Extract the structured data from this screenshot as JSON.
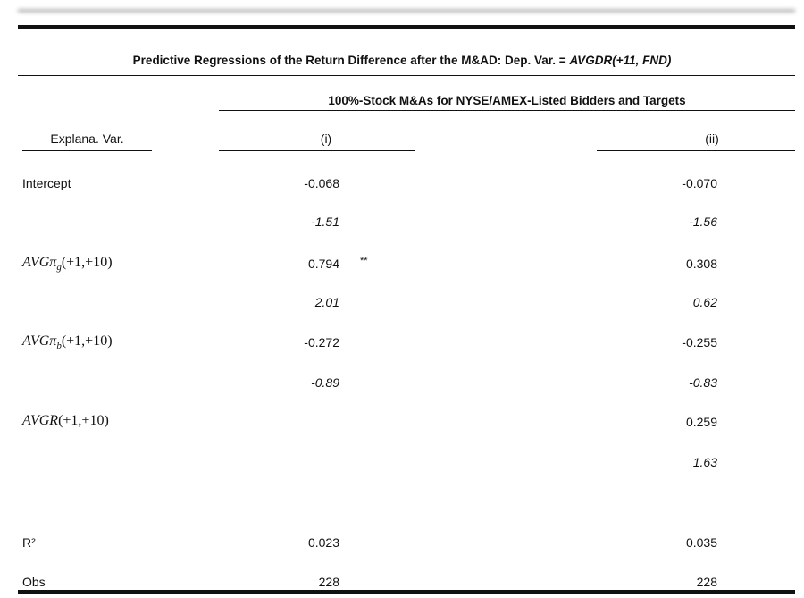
{
  "table": {
    "title": {
      "text": "Predictive Regressions of the Return Difference after the M&AD: Dep. Var. = ",
      "italic": "AVGDR(+11, FND)"
    },
    "subheader": "100%-Stock M&As for NYSE/AMEX-Listed Bidders and Targets",
    "columns": [
      "Explana. Var.",
      "(i)",
      "(ii)"
    ],
    "rows": [
      {
        "label": "Intercept",
        "i": "-0.068",
        "ii": "-0.070"
      },
      {
        "i": "-1.51",
        "ii": "-1.56",
        "tstat": true
      },
      {
        "math": {
          "base": "AVGπ",
          "sub": "g",
          "args": "(+1,+10)"
        },
        "i": "0.794",
        "sig": "**",
        "ii": "0.308"
      },
      {
        "i": "2.01",
        "ii": "0.62",
        "tstat": true
      },
      {
        "math": {
          "base": "AVGπ",
          "sub": "b",
          "args": "(+1,+10)"
        },
        "i": "-0.272",
        "ii": "-0.255"
      },
      {
        "i": "-0.89",
        "ii": "-0.83",
        "tstat": true
      },
      {
        "math": {
          "base": "AVGR",
          "args": "(+1,+10)"
        },
        "ii": "0.259"
      },
      {
        "ii": "1.63",
        "tstat": true
      },
      {
        "label": "R²",
        "i": "0.023",
        "ii": "0.035"
      },
      {
        "label": "Obs",
        "i": "228",
        "ii": "228"
      }
    ]
  }
}
